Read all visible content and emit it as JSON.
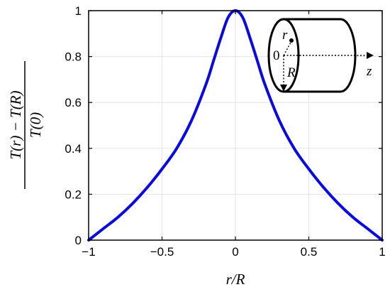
{
  "chart_data": {
    "type": "line",
    "xlabel": "r/R",
    "ylabel_numerator": "T(r) − T(R)",
    "ylabel_denominator": "T(0)",
    "xlim": [
      -1,
      1
    ],
    "ylim": [
      0,
      1
    ],
    "grid": true,
    "x_ticks": [
      -1,
      -0.5,
      0,
      0.5,
      1
    ],
    "x_tick_labels": [
      "−1",
      "−0.5",
      "0",
      "0.5",
      "1"
    ],
    "y_ticks": [
      0,
      0.2,
      0.4,
      0.6,
      0.8,
      1
    ],
    "y_tick_labels": [
      "0",
      "0.2",
      "0.4",
      "0.6",
      "0.8",
      "1"
    ],
    "series": [
      {
        "color": "#0a0adf",
        "x": [
          -1,
          -0.9,
          -0.8,
          -0.7,
          -0.6,
          -0.5,
          -0.4,
          -0.3,
          -0.2,
          -0.15,
          -0.1,
          -0.05,
          0,
          0.05,
          0.1,
          0.15,
          0.2,
          0.3,
          0.4,
          0.5,
          0.6,
          0.7,
          0.8,
          0.9,
          1
        ],
        "y": [
          0.0,
          0.05,
          0.1,
          0.16,
          0.23,
          0.31,
          0.4,
          0.52,
          0.68,
          0.78,
          0.88,
          0.97,
          1.0,
          0.97,
          0.88,
          0.78,
          0.68,
          0.52,
          0.4,
          0.31,
          0.23,
          0.16,
          0.1,
          0.05,
          0.0
        ]
      }
    ],
    "inset": {
      "labels": {
        "r": "r",
        "origin": "0",
        "R": "R",
        "z": "z"
      }
    }
  }
}
